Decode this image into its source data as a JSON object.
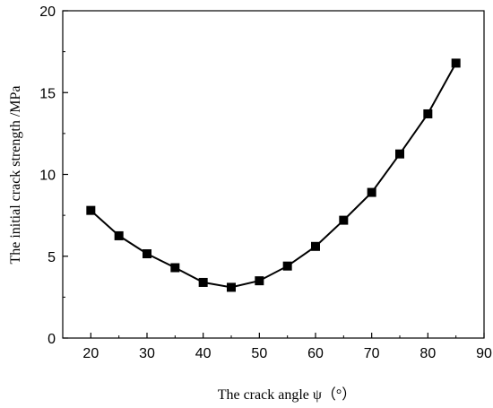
{
  "chart_data": {
    "type": "line",
    "title": "",
    "xlabel": "The crack angle ψ（°）",
    "ylabel": "The initial crack strength /MPa",
    "xlim": [
      15,
      90
    ],
    "ylim": [
      0,
      20
    ],
    "xticks": [
      20,
      30,
      40,
      50,
      60,
      70,
      80,
      90
    ],
    "yticks": [
      0,
      5,
      10,
      15,
      20
    ],
    "grid": false,
    "marker": "filled-square",
    "line_color": "#000000",
    "series": [
      {
        "x": [
          20,
          25,
          30,
          35,
          40,
          45,
          50,
          55,
          60,
          65,
          70,
          75,
          80,
          85
        ],
        "values": [
          7.8,
          6.25,
          5.15,
          4.3,
          3.4,
          3.1,
          3.5,
          4.4,
          5.6,
          7.2,
          8.9,
          11.25,
          13.7,
          16.8
        ]
      }
    ]
  }
}
